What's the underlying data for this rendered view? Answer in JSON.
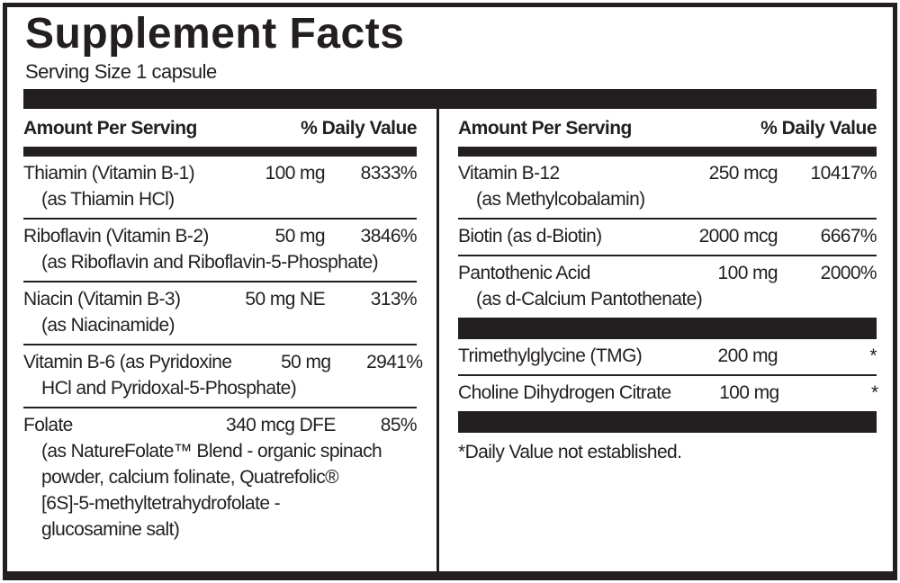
{
  "panel": {
    "title": "Supplement Facts",
    "serving_size": "Serving Size 1 capsule"
  },
  "colors": {
    "ink": "#231f20",
    "background": "#ffffff"
  },
  "columns": {
    "left": {
      "header": {
        "amount_label": "Amount Per Serving",
        "dv_label": "% Daily Value"
      },
      "rows": [
        {
          "name": "Thiamin (Vitamin B-1)",
          "amount": "100 mg",
          "dv": "8333%",
          "detail": "(as Thiamin HCl)"
        },
        {
          "name": "Riboflavin (Vitamin B-2)",
          "amount": "50 mg",
          "dv": "3846%",
          "detail": "(as Riboflavin and Riboflavin-5-Phosphate)"
        },
        {
          "name": "Niacin (Vitamin B-3)",
          "amount": "50 mg NE",
          "dv": "313%",
          "detail": "(as Niacinamide)"
        },
        {
          "name": "Vitamin B-6 (as Pyridoxine",
          "amount": "50 mg",
          "dv": "2941%",
          "detail": "HCl and Pyridoxal-5-Phosphate)"
        },
        {
          "name": "Folate",
          "amount": "340 mcg DFE",
          "dv": "85%",
          "detail": "(as NatureFolate™ Blend - organic spinach\npowder, calcium folinate, Quatrefolic®\n[6S]-5-methyltetrahydrofolate -\nglucosamine salt)"
        }
      ]
    },
    "right": {
      "header": {
        "amount_label": "Amount Per Serving",
        "dv_label": "% Daily Value"
      },
      "rows_top": [
        {
          "name": "Vitamin B-12",
          "amount": "250 mcg",
          "dv": "10417%",
          "detail": "(as Methylcobalamin)"
        },
        {
          "name": "Biotin (as d-Biotin)",
          "amount": "2000 mcg",
          "dv": "6667%",
          "detail": ""
        },
        {
          "name": "Pantothenic Acid",
          "amount": "100 mg",
          "dv": "2000%",
          "detail": "(as d-Calcium Pantothenate)"
        }
      ],
      "rows_other": [
        {
          "name": "Trimethylglycine (TMG)",
          "amount": "200 mg",
          "dv": "*",
          "detail": ""
        },
        {
          "name": "Choline Dihydrogen Citrate",
          "amount": "100 mg",
          "dv": "*",
          "detail": ""
        }
      ],
      "footnote": "*Daily Value not established."
    }
  }
}
